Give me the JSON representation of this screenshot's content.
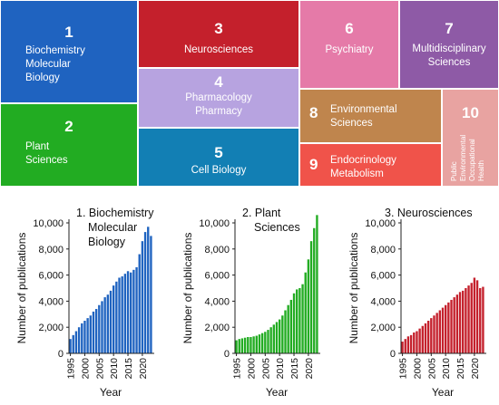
{
  "treemap": {
    "tiles": [
      {
        "id": "1",
        "number": "1",
        "label": [
          "Biochemistry",
          "Molecular",
          "Biology"
        ],
        "color": "#1f63c0"
      },
      {
        "id": "2",
        "number": "2",
        "label": [
          "Plant",
          "Sciences"
        ],
        "color": "#22ac22"
      },
      {
        "id": "3",
        "number": "3",
        "label": [
          "Neurosciences"
        ],
        "color": "#c4202c"
      },
      {
        "id": "4",
        "number": "4",
        "label": [
          "Pharmacology",
          "Pharmacy"
        ],
        "color": "#b7a3e0"
      },
      {
        "id": "5",
        "number": "5",
        "label": [
          "Cell Biology"
        ],
        "color": "#127fb4"
      },
      {
        "id": "6",
        "number": "6",
        "label": [
          "Psychiatry"
        ],
        "color": "#e57aa8"
      },
      {
        "id": "7",
        "number": "7",
        "label": [
          "Multidisciplinary",
          "Sciences"
        ],
        "color": "#8e5aa6"
      },
      {
        "id": "8",
        "number": "8",
        "label": [
          "Environmental",
          "Sciences"
        ],
        "color": "#bf854d"
      },
      {
        "id": "9",
        "number": "9",
        "label": [
          "Endocrinology",
          "Metabolism"
        ],
        "color": "#f0534a"
      },
      {
        "id": "10",
        "number": "10",
        "label": [
          "Public",
          "Environmental",
          "Occupational",
          "Health"
        ],
        "color": "#e8a3a1"
      }
    ]
  },
  "chart_data": [
    {
      "type": "bar",
      "title": "1. Biochemistry Molecular Biology",
      "title_lines": [
        "1. Biochemistry",
        "Molecular",
        "Biology"
      ],
      "xlabel": "Year",
      "ylabel": "Number of publications",
      "ylim": [
        0,
        10000
      ],
      "yticks": [
        "0",
        "2,000",
        "4,000",
        "6,000",
        "8,000",
        "10,000"
      ],
      "xticks": [
        "1995",
        "2000",
        "2005",
        "2010",
        "2015",
        "2020"
      ],
      "color": "#1f63c0",
      "x": [
        1995,
        1996,
        1997,
        1998,
        1999,
        2000,
        2001,
        2002,
        2003,
        2004,
        2005,
        2006,
        2007,
        2008,
        2009,
        2010,
        2011,
        2012,
        2013,
        2014,
        2015,
        2016,
        2017,
        2018,
        2019,
        2020,
        2021,
        2022,
        2023
      ],
      "values": [
        1100,
        1400,
        1700,
        2000,
        2300,
        2500,
        2700,
        2900,
        3200,
        3400,
        3700,
        4000,
        4300,
        4500,
        4800,
        5200,
        5500,
        5800,
        5900,
        6100,
        6300,
        6200,
        6400,
        6600,
        7600,
        8600,
        9300,
        9700,
        9000
      ]
    },
    {
      "type": "bar",
      "title": "2. Plant Sciences",
      "title_lines": [
        "2. Plant",
        "Sciences"
      ],
      "xlabel": "Year",
      "ylabel": "Number of publications",
      "ylim": [
        0,
        10000
      ],
      "yticks": [
        "0",
        "2,000",
        "4,000",
        "6,000",
        "8,000",
        "10,000"
      ],
      "xticks": [
        "1995",
        "2000",
        "2005",
        "2010",
        "2015",
        "2020"
      ],
      "color": "#22ac22",
      "x": [
        1995,
        1996,
        1997,
        1998,
        1999,
        2000,
        2001,
        2002,
        2003,
        2004,
        2005,
        2006,
        2007,
        2008,
        2009,
        2010,
        2011,
        2012,
        2013,
        2014,
        2015,
        2016,
        2017,
        2018,
        2019,
        2020,
        2021,
        2022,
        2023
      ],
      "values": [
        1000,
        1100,
        1150,
        1200,
        1250,
        1250,
        1300,
        1350,
        1450,
        1550,
        1650,
        1800,
        2000,
        2200,
        2400,
        2600,
        2900,
        3300,
        3700,
        4100,
        4600,
        4900,
        5000,
        5300,
        6200,
        7200,
        8600,
        9600,
        10600
      ]
    },
    {
      "type": "bar",
      "title": "3. Neurosciences",
      "title_lines": [
        "3. Neurosciences"
      ],
      "xlabel": "Year",
      "ylabel": "Number of publications",
      "ylim": [
        0,
        10000
      ],
      "yticks": [
        "0",
        "2,000",
        "4,000",
        "6,000",
        "8,000",
        "10,000"
      ],
      "xticks": [
        "1995",
        "2000",
        "2005",
        "2010",
        "2015",
        "2020"
      ],
      "color": "#c4202c",
      "x": [
        1995,
        1996,
        1997,
        1998,
        1999,
        2000,
        2001,
        2002,
        2003,
        2004,
        2005,
        2006,
        2007,
        2008,
        2009,
        2010,
        2011,
        2012,
        2013,
        2014,
        2015,
        2016,
        2017,
        2018,
        2019,
        2020,
        2021,
        2022,
        2023
      ],
      "values": [
        900,
        1100,
        1300,
        1400,
        1600,
        1700,
        1900,
        2100,
        2300,
        2500,
        2700,
        2900,
        3100,
        3300,
        3500,
        3700,
        3900,
        4100,
        4300,
        4500,
        4700,
        4800,
        5000,
        5200,
        5400,
        5800,
        5600,
        5000,
        5100
      ]
    }
  ]
}
